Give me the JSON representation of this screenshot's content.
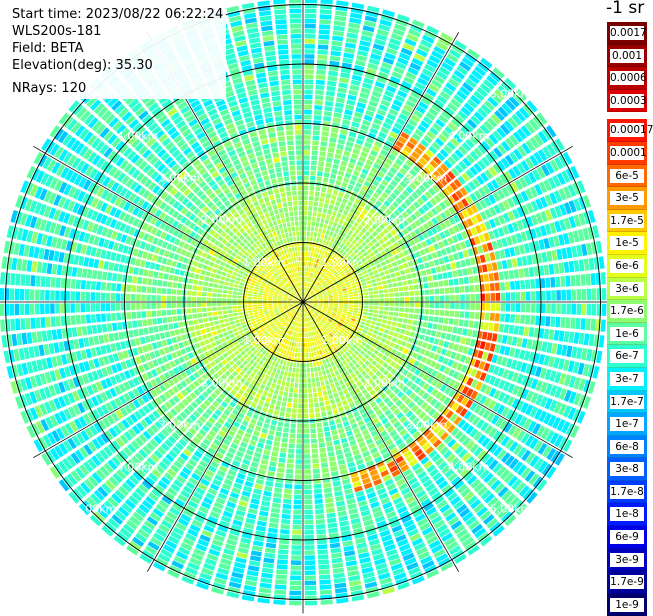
{
  "info": {
    "start_time": "Start time: 2023/08/22 06:22:24",
    "instrument": "WLS200s-181",
    "field": "Field: BETA",
    "elevation": "Elevation(deg): 35.30",
    "nrays": "NRays: 120"
  },
  "units_label": "-1 sr",
  "colorbar": {
    "upper": [
      {
        "label": "0.0017",
        "color": "#7a0000"
      },
      {
        "label": "0.001",
        "color": "#9a0000"
      },
      {
        "label": "0.0006",
        "color": "#bb0000"
      },
      {
        "label": "0.0003",
        "color": "#dd0000"
      }
    ],
    "lower": [
      {
        "label": "0.00017",
        "color": "#ff1500"
      },
      {
        "label": "0.0001",
        "color": "#ff3c00"
      },
      {
        "label": "6e-5",
        "color": "#ff6a00"
      },
      {
        "label": "3e-5",
        "color": "#ff9a00"
      },
      {
        "label": "1.7e-5",
        "color": "#ffc800"
      },
      {
        "label": "1e-5",
        "color": "#fff200"
      },
      {
        "label": "6e-6",
        "color": "#e2ff1a"
      },
      {
        "label": "3e-6",
        "color": "#b8ff45"
      },
      {
        "label": "1.7e-6",
        "color": "#8cff70"
      },
      {
        "label": "1e-6",
        "color": "#5cffa0"
      },
      {
        "label": "6e-7",
        "color": "#2dffd0"
      },
      {
        "label": "3e-7",
        "color": "#00f0ff"
      },
      {
        "label": "1.7e-7",
        "color": "#00c8ff"
      },
      {
        "label": "1e-7",
        "color": "#00a6ff"
      },
      {
        "label": "6e-8",
        "color": "#0082ff"
      },
      {
        "label": "3e-8",
        "color": "#005eff"
      },
      {
        "label": "1.7e-8",
        "color": "#003cff"
      },
      {
        "label": "1e-8",
        "color": "#001aff"
      },
      {
        "label": "6e-9",
        "color": "#0000e6"
      },
      {
        "label": "3e-9",
        "color": "#0000bf"
      },
      {
        "label": "1.7e-9",
        "color": "#00009a"
      },
      {
        "label": "1e-9",
        "color": "#000070"
      }
    ]
  },
  "chart_data": {
    "type": "heatmap",
    "projection": "polar (PPI)",
    "field": "BETA",
    "units": "-1 sr",
    "n_rays": 120,
    "elevation_deg": 35.3,
    "range_rings_km": [
      1,
      2,
      3,
      4,
      5
    ],
    "range_ring_labels": [
      "1.00km",
      "2.00km",
      "3.00km",
      "4.00km",
      "5.00km"
    ],
    "azimuth_lines_deg": [
      0,
      30,
      60,
      90,
      120,
      150,
      180,
      210,
      240,
      270,
      300,
      330
    ],
    "max_range_km": 5.1,
    "background_level": "3e-8 to 1.7e-7",
    "features": [
      {
        "name": "aerosol layer ring",
        "range_km": [
          3.0,
          3.2
        ],
        "azimuth_deg": [
          30,
          165
        ],
        "level": "1e-5 to 0.00017"
      }
    ]
  }
}
